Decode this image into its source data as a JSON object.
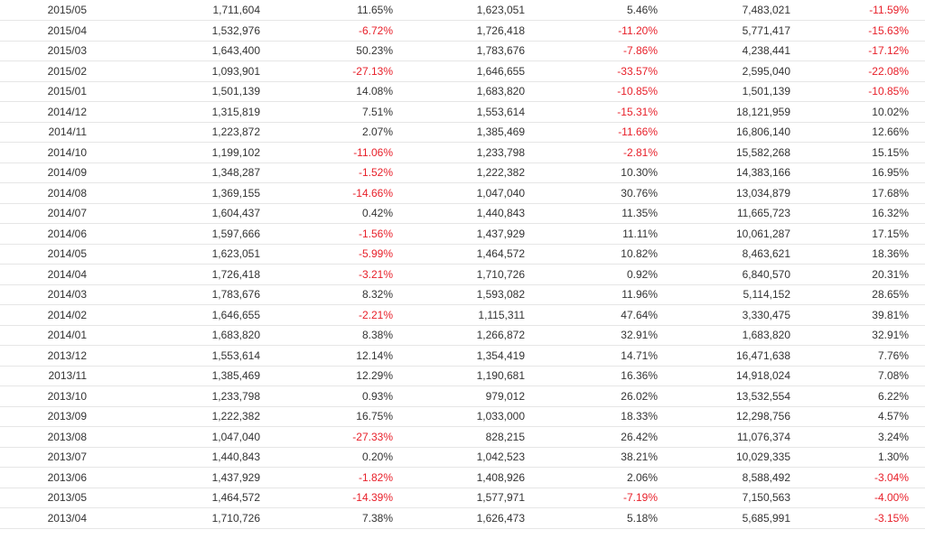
{
  "colors": {
    "negative": "#e8202a",
    "text": "#333333",
    "row_border": "#e6e6e6"
  },
  "table": {
    "rows": [
      [
        "2015/05",
        "1,711,604",
        "11.65%",
        "1,623,051",
        "5.46%",
        "7,483,021",
        "-11.59%"
      ],
      [
        "2015/04",
        "1,532,976",
        "-6.72%",
        "1,726,418",
        "-11.20%",
        "5,771,417",
        "-15.63%"
      ],
      [
        "2015/03",
        "1,643,400",
        "50.23%",
        "1,783,676",
        "-7.86%",
        "4,238,441",
        "-17.12%"
      ],
      [
        "2015/02",
        "1,093,901",
        "-27.13%",
        "1,646,655",
        "-33.57%",
        "2,595,040",
        "-22.08%"
      ],
      [
        "2015/01",
        "1,501,139",
        "14.08%",
        "1,683,820",
        "-10.85%",
        "1,501,139",
        "-10.85%"
      ],
      [
        "2014/12",
        "1,315,819",
        "7.51%",
        "1,553,614",
        "-15.31%",
        "18,121,959",
        "10.02%"
      ],
      [
        "2014/11",
        "1,223,872",
        "2.07%",
        "1,385,469",
        "-11.66%",
        "16,806,140",
        "12.66%"
      ],
      [
        "2014/10",
        "1,199,102",
        "-11.06%",
        "1,233,798",
        "-2.81%",
        "15,582,268",
        "15.15%"
      ],
      [
        "2014/09",
        "1,348,287",
        "-1.52%",
        "1,222,382",
        "10.30%",
        "14,383,166",
        "16.95%"
      ],
      [
        "2014/08",
        "1,369,155",
        "-14.66%",
        "1,047,040",
        "30.76%",
        "13,034,879",
        "17.68%"
      ],
      [
        "2014/07",
        "1,604,437",
        "0.42%",
        "1,440,843",
        "11.35%",
        "11,665,723",
        "16.32%"
      ],
      [
        "2014/06",
        "1,597,666",
        "-1.56%",
        "1,437,929",
        "11.11%",
        "10,061,287",
        "17.15%"
      ],
      [
        "2014/05",
        "1,623,051",
        "-5.99%",
        "1,464,572",
        "10.82%",
        "8,463,621",
        "18.36%"
      ],
      [
        "2014/04",
        "1,726,418",
        "-3.21%",
        "1,710,726",
        "0.92%",
        "6,840,570",
        "20.31%"
      ],
      [
        "2014/03",
        "1,783,676",
        "8.32%",
        "1,593,082",
        "11.96%",
        "5,114,152",
        "28.65%"
      ],
      [
        "2014/02",
        "1,646,655",
        "-2.21%",
        "1,115,311",
        "47.64%",
        "3,330,475",
        "39.81%"
      ],
      [
        "2014/01",
        "1,683,820",
        "8.38%",
        "1,266,872",
        "32.91%",
        "1,683,820",
        "32.91%"
      ],
      [
        "2013/12",
        "1,553,614",
        "12.14%",
        "1,354,419",
        "14.71%",
        "16,471,638",
        "7.76%"
      ],
      [
        "2013/11",
        "1,385,469",
        "12.29%",
        "1,190,681",
        "16.36%",
        "14,918,024",
        "7.08%"
      ],
      [
        "2013/10",
        "1,233,798",
        "0.93%",
        "979,012",
        "26.02%",
        "13,532,554",
        "6.22%"
      ],
      [
        "2013/09",
        "1,222,382",
        "16.75%",
        "1,033,000",
        "18.33%",
        "12,298,756",
        "4.57%"
      ],
      [
        "2013/08",
        "1,047,040",
        "-27.33%",
        "828,215",
        "26.42%",
        "11,076,374",
        "3.24%"
      ],
      [
        "2013/07",
        "1,440,843",
        "0.20%",
        "1,042,523",
        "38.21%",
        "10,029,335",
        "1.30%"
      ],
      [
        "2013/06",
        "1,437,929",
        "-1.82%",
        "1,408,926",
        "2.06%",
        "8,588,492",
        "-3.04%"
      ],
      [
        "2013/05",
        "1,464,572",
        "-14.39%",
        "1,577,971",
        "-7.19%",
        "7,150,563",
        "-4.00%"
      ],
      [
        "2013/04",
        "1,710,726",
        "7.38%",
        "1,626,473",
        "5.18%",
        "5,685,991",
        "-3.15%"
      ]
    ]
  }
}
